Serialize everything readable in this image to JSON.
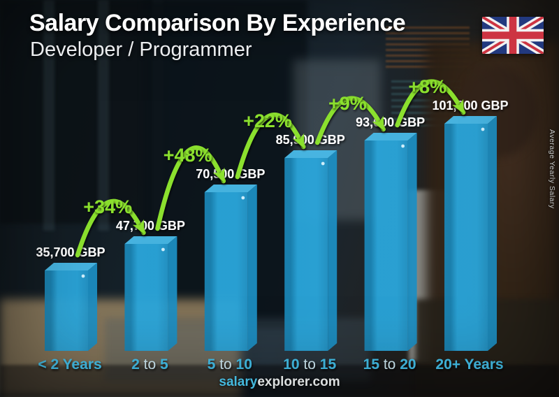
{
  "header": {
    "title": "Salary Comparison By Experience",
    "subtitle": "Developer / Programmer"
  },
  "flag": {
    "name": "united-kingdom-flag"
  },
  "right_axis": {
    "label": "Average Yearly Salary"
  },
  "footer": {
    "brand_primary": "salary",
    "brand_secondary": "explorer.com"
  },
  "chart_data": {
    "type": "bar",
    "title": "Salary Comparison By Experience",
    "subtitle": "Developer / Programmer",
    "categories": [
      "< 2 Years",
      "2 to 5",
      "5 to 10",
      "10 to 15",
      "15 to 20",
      "20+ Years"
    ],
    "values": [
      35700,
      47700,
      70500,
      85900,
      93600,
      101000
    ],
    "value_labels": [
      "35,700 GBP",
      "47,700 GBP",
      "70,500 GBP",
      "85,900 GBP",
      "93,600 GBP",
      "101,000 GBP"
    ],
    "growth_labels": [
      "+34%",
      "+48%",
      "+22%",
      "+9%",
      "+8%"
    ],
    "currency": "GBP",
    "ylabel": "Average Yearly Salary",
    "ylim": [
      0,
      101000
    ],
    "legend": "none",
    "grid": "off",
    "colors": {
      "bar_front": "#2aa6db",
      "bar_front_dark_edge": "#1a84b4",
      "bar_top": "#49bbe9",
      "bar_side": "#1d8ec2",
      "growth_green": "#8be02f",
      "value_text": "#ffffff",
      "tick_number": "#45c4ef",
      "tick_to_word": "#d4eff9"
    }
  }
}
